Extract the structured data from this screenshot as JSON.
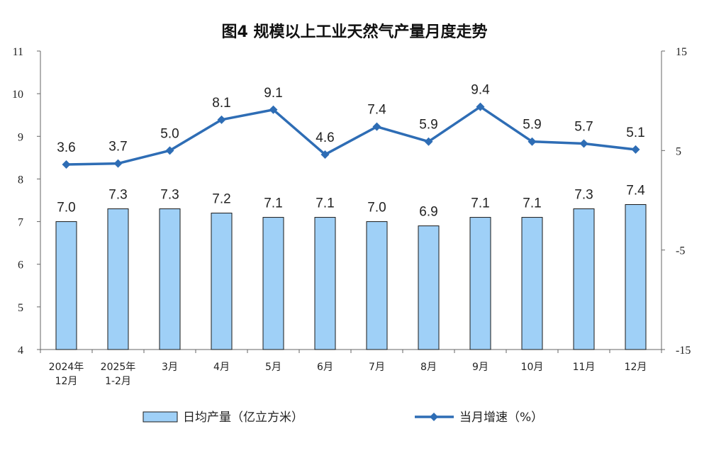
{
  "chart_data": {
    "type": "bar",
    "title": "图4  规模以上工业天然气产量月度走势",
    "categories": [
      [
        "2024年",
        "12月"
      ],
      [
        "2025年",
        "1-2月"
      ],
      [
        "3月"
      ],
      [
        "4月"
      ],
      [
        "5月"
      ],
      [
        "6月"
      ],
      [
        "7月"
      ],
      [
        "8月"
      ],
      [
        "9月"
      ],
      [
        "10月"
      ],
      [
        "11月"
      ],
      [
        "12月"
      ]
    ],
    "series": [
      {
        "name": "日均产量（亿立方米）",
        "type": "bar",
        "axis": "left",
        "values": [
          7.0,
          7.3,
          7.3,
          7.2,
          7.1,
          7.1,
          7.0,
          6.9,
          7.1,
          7.1,
          7.3,
          7.4
        ],
        "labels": [
          "7.0",
          "7.3",
          "7.3",
          "7.2",
          "7.1",
          "7.1",
          "7.0",
          "6.9",
          "7.1",
          "7.1",
          "7.3",
          "7.4"
        ],
        "color": "#9fd0f7",
        "border": "#1a1a1a"
      },
      {
        "name": "当月增速（%）",
        "type": "line",
        "axis": "right",
        "values": [
          3.6,
          3.7,
          5.0,
          8.1,
          9.1,
          4.6,
          7.4,
          5.9,
          9.4,
          5.9,
          5.7,
          5.1
        ],
        "labels": [
          "3.6",
          "3.7",
          "5.0",
          "8.1",
          "9.1",
          "4.6",
          "7.4",
          "5.9",
          "9.4",
          "5.9",
          "5.7",
          "5.1"
        ],
        "color": "#2e6db5"
      }
    ],
    "y_left": {
      "min": 4,
      "max": 11,
      "ticks": [
        "4",
        "5",
        "6",
        "7",
        "8",
        "9",
        "10",
        "11"
      ]
    },
    "y_right": {
      "min": -15,
      "max": 15,
      "ticks": [
        "-15",
        "-5",
        "5",
        "15"
      ]
    },
    "grid": false,
    "legend_position": "bottom"
  }
}
